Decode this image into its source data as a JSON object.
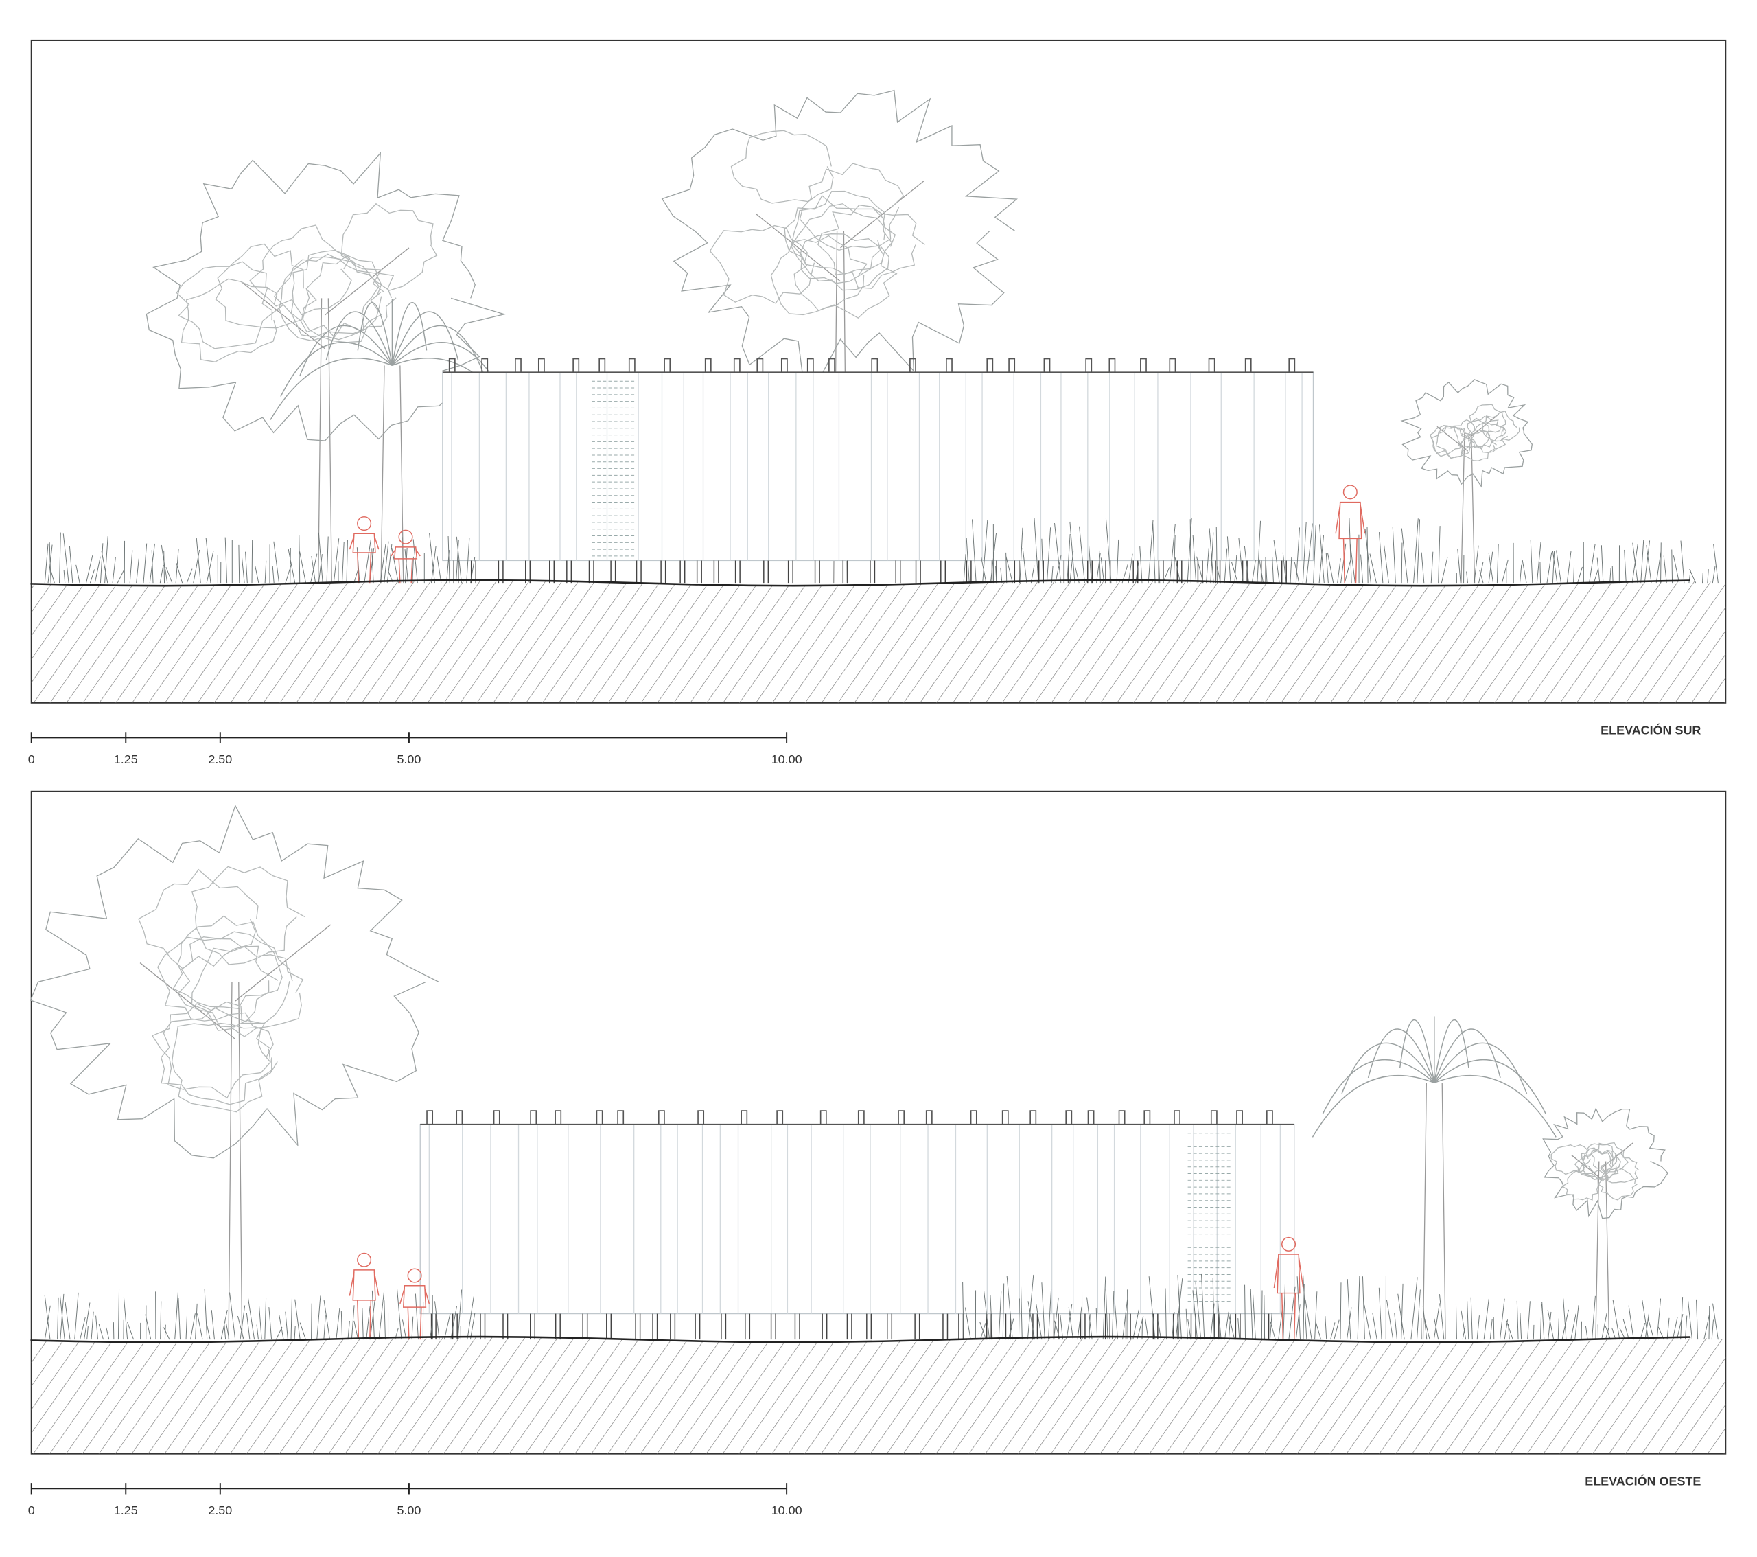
{
  "drawings": [
    {
      "title": "ELEVACIÓN SUR",
      "scale_ticks": [
        0,
        1.25,
        {
          "value": 2.5,
          "label": "2.50"
        },
        {
          "value": 5,
          "label": "5.00"
        },
        {
          "value": 10,
          "label": "10.00"
        }
      ]
    },
    {
      "title": "ELEVACIÓN OESTE",
      "scale_ticks": [
        0,
        1.25,
        {
          "value": 2.5,
          "label": "2.50"
        },
        {
          "value": 5,
          "label": "5.00"
        },
        {
          "value": 10,
          "label": "10.00"
        }
      ]
    }
  ]
}
